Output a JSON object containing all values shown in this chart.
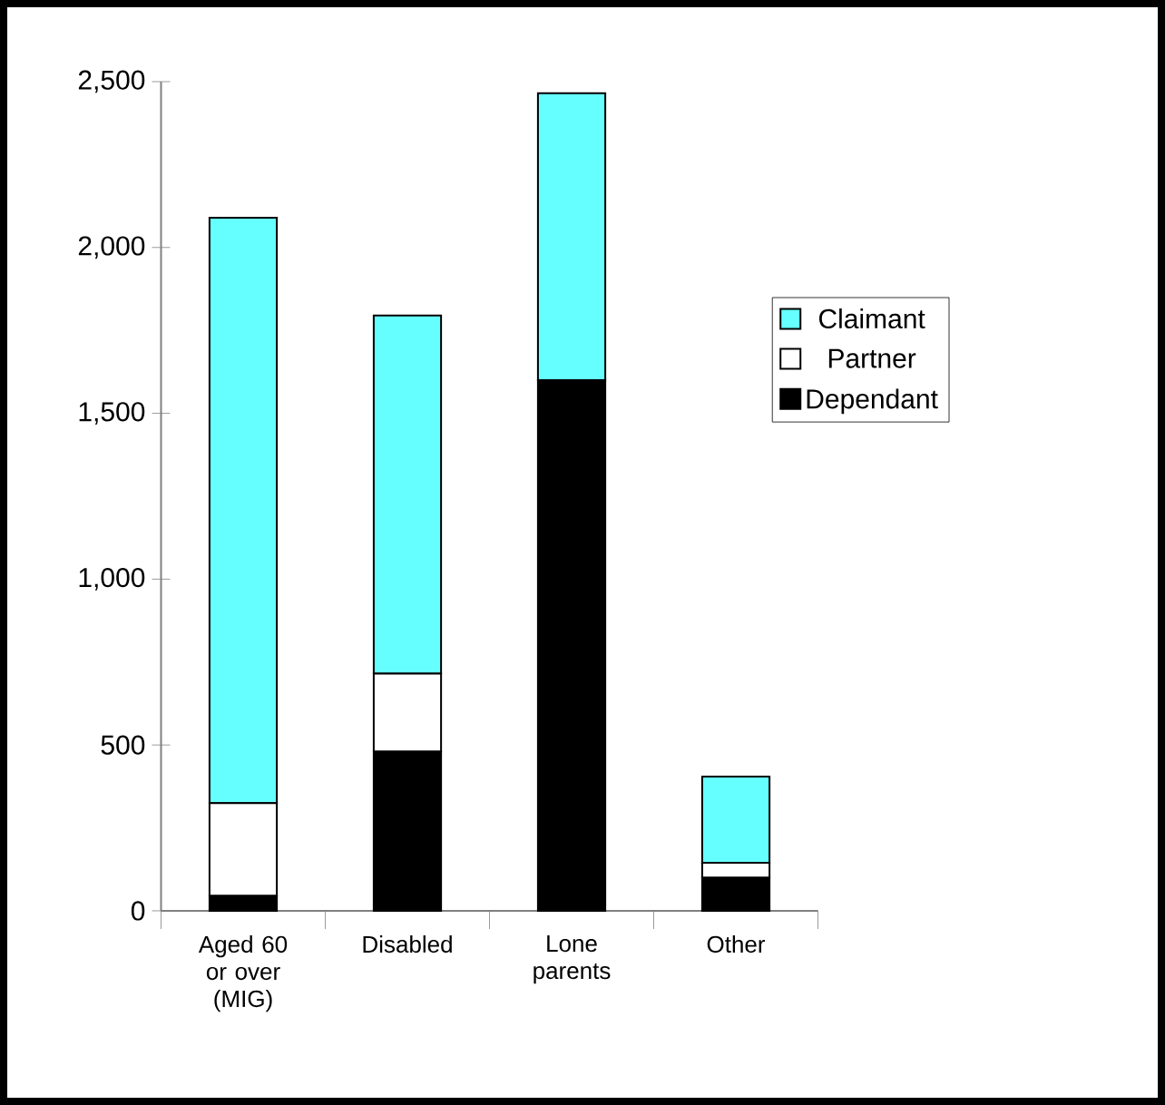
{
  "chart_data": {
    "type": "bar",
    "stacked": true,
    "categories": [
      "Aged 60 or over (MIG)",
      "Disabled",
      "Lone parents",
      "Other"
    ],
    "series": [
      {
        "name": "Dependant",
        "color": "#000000",
        "values": [
          45,
          480,
          1600,
          100
        ]
      },
      {
        "name": "Partner",
        "color": "#ffffff",
        "values": [
          280,
          235,
          0,
          45
        ]
      },
      {
        "name": "Claimant",
        "color": "#66ffff",
        "values": [
          1765,
          1080,
          865,
          260
        ]
      }
    ],
    "ylim": [
      0,
      2500
    ],
    "yticks": [
      0,
      {
        "value": 500,
        "label": "500"
      },
      {
        "value": 1000,
        "label": "1,000"
      },
      {
        "value": 1500,
        "label": "1,500"
      },
      {
        "value": 2000,
        "label": "2,000"
      },
      {
        "value": 2500,
        "label": "2,500"
      }
    ],
    "legend": "right",
    "grid": false
  }
}
